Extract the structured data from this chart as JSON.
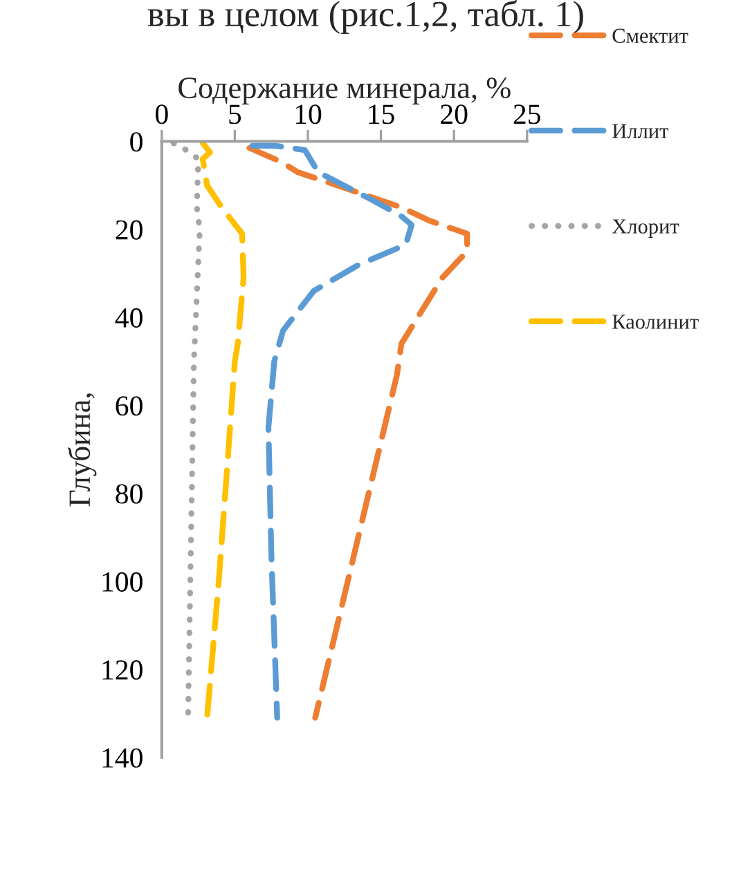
{
  "chart_data": {
    "type": "line",
    "annotations": [
      "вы в целом (рис.1,2, табл. 1)"
    ],
    "xlabel": "Содержание минерала, %",
    "ylabel": "Глубина,",
    "xlim": [
      0,
      25
    ],
    "xticks": [
      0,
      5,
      10,
      15,
      20,
      25
    ],
    "ylim": [
      140,
      0
    ],
    "yticks": [
      0,
      20,
      40,
      60,
      80,
      100,
      120,
      140
    ],
    "grid": false,
    "legend": "right",
    "marker": "none",
    "series": [
      {
        "name": "Смектит",
        "color": "#ed7d31",
        "line_style": "dashed",
        "x": [
          6.0,
          8.2,
          9.3,
          12.0,
          16.4,
          18.3,
          20.9,
          20.9,
          19.2,
          16.4,
          16.1,
          10.5
        ],
        "values": [
          1.5,
          4.7,
          7,
          10,
          15,
          18,
          21,
          25,
          31,
          46,
          53,
          131
        ]
      },
      {
        "name": "Иллит",
        "color": "#5b9bd5",
        "line_style": "dashed",
        "x": [
          6.2,
          7.8,
          9.8,
          10.7,
          14.5,
          16.4,
          17.1,
          16.7,
          13.5,
          10.4,
          8.3,
          7.7,
          7.3,
          7.5,
          7.9
        ],
        "values": [
          1,
          1,
          2,
          7,
          13.5,
          17,
          19,
          23.5,
          28,
          34,
          43,
          50,
          65,
          94,
          131
        ]
      },
      {
        "name": "Хлорит",
        "color": "#a5a5a5",
        "line_style": "dotted",
        "x": [
          0.8,
          1.7,
          2.5,
          2.4,
          2.6,
          2.2,
          1.8
        ],
        "values": [
          0.4,
          2,
          4,
          15,
          20,
          50,
          131
        ]
      },
      {
        "name": "Каолинит",
        "color": "#ffc000",
        "line_style": "dashed",
        "x": [
          2.8,
          3.3,
          2.8,
          3.1,
          4.1,
          5.5,
          5.6,
          5.2,
          5.0,
          4.5,
          3.9,
          3.1
        ],
        "values": [
          0.4,
          2.5,
          4,
          10,
          15,
          21,
          31,
          46,
          50,
          73,
          100,
          131
        ]
      }
    ]
  }
}
